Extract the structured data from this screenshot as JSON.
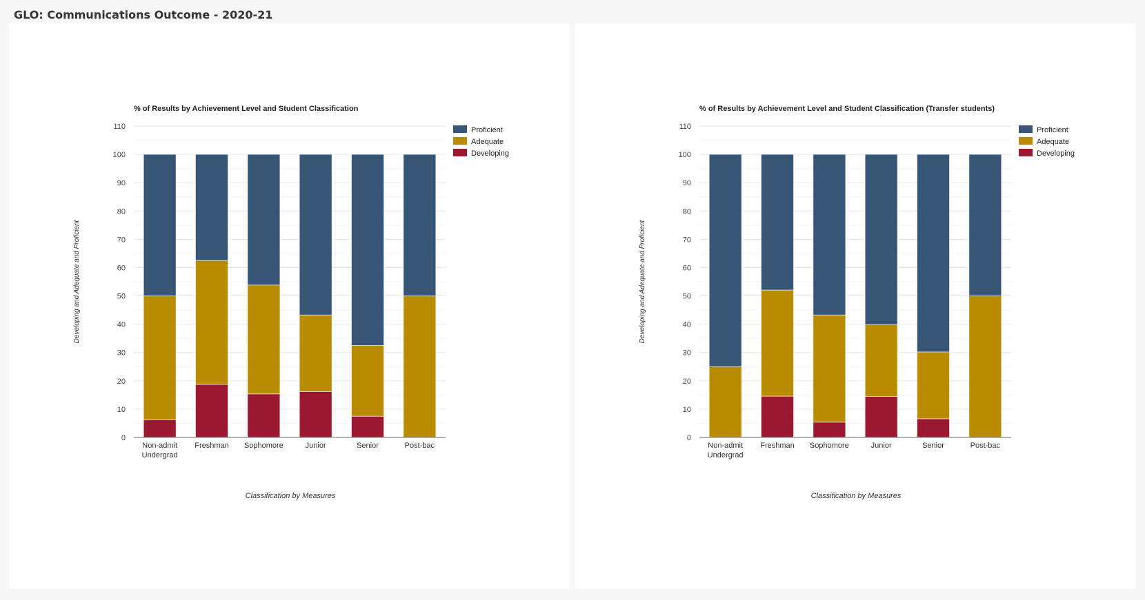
{
  "page": {
    "title": "GLO: Communications Outcome - 2020-21"
  },
  "colors": {
    "Proficient": "#375574",
    "Adequate": "#b88b00",
    "Developing": "#9a1830"
  },
  "chart_data": [
    {
      "type": "bar",
      "stacked": true,
      "title": "% of Results by Achievement Level and Student Classification",
      "xlabel": "Classification by Measures",
      "ylabel": "Developing and Adequate and Proficient",
      "ylim": [
        0,
        110
      ],
      "yticks": [
        0,
        10,
        20,
        30,
        40,
        50,
        60,
        70,
        80,
        90,
        100,
        110
      ],
      "grid": true,
      "legend": "right",
      "categories": [
        "Non-admit Undergrad",
        "Freshman",
        "Sophomore",
        "Junior",
        "Senior",
        "Post-bac"
      ],
      "series": [
        {
          "name": "Developing",
          "values": [
            6.25,
            18.75,
            15.38,
            16.22,
            7.5,
            0
          ]
        },
        {
          "name": "Adequate",
          "values": [
            43.75,
            43.75,
            38.46,
            27.03,
            25,
            50
          ]
        },
        {
          "name": "Proficient",
          "values": [
            50,
            37.5,
            46.16,
            56.75,
            67.5,
            50
          ]
        }
      ]
    },
    {
      "type": "bar",
      "stacked": true,
      "title": "% of Results by Achievement Level and Student Classification (Transfer students)",
      "xlabel": "Classification by Measures",
      "ylabel": "Developing and Adequate and Proficient",
      "ylim": [
        0,
        110
      ],
      "yticks": [
        0,
        10,
        20,
        30,
        40,
        50,
        60,
        70,
        80,
        90,
        100,
        110
      ],
      "grid": true,
      "legend": "right",
      "categories": [
        "Non-admit Undergrad",
        "Freshman",
        "Sophomore",
        "Junior",
        "Senior",
        "Post-bac"
      ],
      "series": [
        {
          "name": "Developing",
          "values": [
            0,
            14.58,
            5.41,
            14.5,
            6.6,
            0
          ]
        },
        {
          "name": "Adequate",
          "values": [
            25,
            37.5,
            37.84,
            25.3,
            23.6,
            50
          ]
        },
        {
          "name": "Proficient",
          "values": [
            75,
            47.92,
            56.75,
            60.2,
            69.8,
            50
          ]
        }
      ]
    }
  ]
}
